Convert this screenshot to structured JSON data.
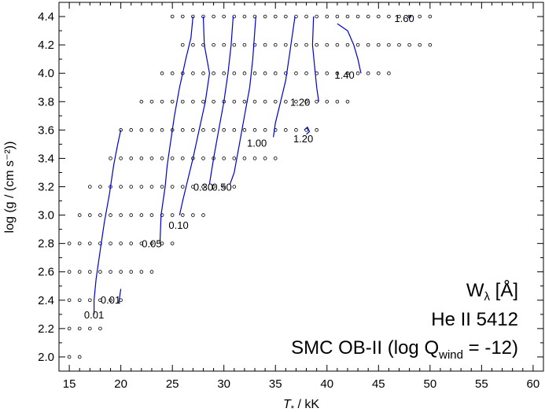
{
  "chart_data": {
    "type": "contour",
    "xlabel_main": "T",
    "xlabel_sub": "*",
    "xlabel_unit": " / kK",
    "ylabel": "log (g / (cm s⁻²))",
    "xlim": [
      14,
      61
    ],
    "ylim": [
      1.9,
      4.5
    ],
    "x_ticks": [
      15,
      20,
      25,
      30,
      35,
      40,
      45,
      50,
      55,
      60
    ],
    "y_ticks": [
      2.0,
      2.2,
      2.4,
      2.6,
      2.8,
      3.0,
      3.2,
      3.4,
      3.6,
      3.8,
      4.0,
      4.2,
      4.4
    ],
    "x_tick_labels": [
      "15",
      "20",
      "25",
      "30",
      "35",
      "40",
      "45",
      "50",
      "55",
      "60"
    ],
    "y_tick_labels": [
      "2.0",
      "2.2",
      "2.4",
      "2.6",
      "2.8",
      "3.0",
      "3.2",
      "3.4",
      "3.6",
      "3.8",
      "4.0",
      "4.2",
      "4.4"
    ],
    "legend_lines": {
      "quantity": "W",
      "quantity_sub": "λ",
      "quantity_unit": " [Å]",
      "line_name": "He II 5412",
      "model_prefix": "SMC OB-II (log Q",
      "model_sub": "wind",
      "model_suffix": " = -12)"
    },
    "grid_color": "#000000",
    "contour_color": "#0000cc",
    "grid_rows": [
      {
        "logg": 2.0,
        "x": [
          15,
          16
        ]
      },
      {
        "logg": 2.2,
        "x": [
          15,
          16,
          17,
          18
        ]
      },
      {
        "logg": 2.4,
        "x": [
          15,
          16,
          17,
          18,
          19,
          20
        ]
      },
      {
        "logg": 2.6,
        "x": [
          15,
          16,
          17,
          18,
          19,
          20,
          21,
          22,
          23
        ]
      },
      {
        "logg": 2.8,
        "x": [
          15,
          16,
          17,
          18,
          19,
          20,
          21,
          22,
          23,
          24,
          25
        ]
      },
      {
        "logg": 3.0,
        "x": [
          16,
          17,
          18,
          19,
          20,
          21,
          22,
          23,
          24,
          25,
          26,
          27,
          28
        ]
      },
      {
        "logg": 3.2,
        "x": [
          17,
          18,
          19,
          20,
          21,
          22,
          23,
          24,
          25,
          26,
          27,
          28,
          29,
          30,
          31
        ]
      },
      {
        "logg": 3.4,
        "x": [
          19,
          20,
          21,
          22,
          23,
          24,
          25,
          26,
          27,
          28,
          29,
          30,
          31,
          32,
          33,
          34,
          35
        ]
      },
      {
        "logg": 3.6,
        "x": [
          20,
          21,
          22,
          23,
          24,
          25,
          26,
          27,
          28,
          29,
          30,
          31,
          32,
          33,
          34,
          35,
          36,
          37,
          38,
          39
        ]
      },
      {
        "logg": 3.8,
        "x": [
          22,
          23,
          24,
          25,
          26,
          27,
          28,
          29,
          30,
          31,
          32,
          33,
          34,
          35,
          36,
          37,
          38,
          39,
          40,
          41,
          42
        ]
      },
      {
        "logg": 4.0,
        "x": [
          24,
          25,
          26,
          27,
          28,
          29,
          30,
          31,
          32,
          33,
          34,
          35,
          36,
          37,
          38,
          39,
          40,
          41,
          42,
          43,
          44,
          45,
          46
        ]
      },
      {
        "logg": 4.2,
        "x": [
          26,
          27,
          28,
          29,
          30,
          31,
          32,
          33,
          34,
          35,
          36,
          37,
          38,
          39,
          40,
          41,
          42,
          43,
          44,
          45,
          46,
          47,
          48,
          49,
          50
        ]
      },
      {
        "logg": 4.4,
        "x": [
          25,
          26,
          27,
          28,
          29,
          30,
          31,
          32,
          33,
          34,
          35,
          36,
          37,
          38,
          39,
          40,
          41,
          42,
          43,
          44,
          45,
          46,
          47,
          48,
          49,
          50
        ]
      }
    ],
    "contours": [
      {
        "level": "0.01",
        "points": [
          [
            17.4,
            2.3
          ],
          [
            17.4,
            2.4
          ],
          [
            17.6,
            2.55
          ],
          [
            18.0,
            2.75
          ],
          [
            18.4,
            2.95
          ],
          [
            18.9,
            3.15
          ],
          [
            19.3,
            3.35
          ],
          [
            19.7,
            3.5
          ],
          [
            20.0,
            3.6
          ]
        ]
      },
      {
        "level": "0.01",
        "points": [
          [
            19.8,
            2.38
          ],
          [
            19.9,
            2.43
          ],
          [
            20.0,
            2.48
          ]
        ]
      },
      {
        "level": "0.05",
        "points": [
          [
            23.8,
            2.8
          ],
          [
            23.9,
            3.0
          ],
          [
            24.3,
            3.2
          ],
          [
            24.5,
            3.35
          ],
          [
            24.8,
            3.5
          ],
          [
            25.2,
            3.7
          ],
          [
            25.7,
            3.9
          ],
          [
            26.3,
            4.1
          ],
          [
            26.8,
            4.25
          ],
          [
            27.0,
            4.4
          ]
        ]
      },
      {
        "level": "0.10",
        "points": [
          [
            25.7,
            3.0
          ],
          [
            26.0,
            3.1
          ],
          [
            26.5,
            3.25
          ],
          [
            27.0,
            3.4
          ],
          [
            27.6,
            3.6
          ],
          [
            28.2,
            3.8
          ],
          [
            28.6,
            4.0
          ],
          [
            28.1,
            4.2
          ],
          [
            28.0,
            4.4
          ]
        ]
      },
      {
        "level": "0.30",
        "points": [
          [
            28.6,
            3.22
          ],
          [
            29.0,
            3.4
          ],
          [
            29.5,
            3.6
          ],
          [
            30.0,
            3.8
          ],
          [
            30.4,
            4.0
          ],
          [
            30.7,
            4.2
          ],
          [
            30.9,
            4.4
          ]
        ]
      },
      {
        "level": "0.50",
        "points": [
          [
            30.6,
            3.22
          ],
          [
            31.0,
            3.3
          ],
          [
            31.5,
            3.5
          ],
          [
            32.0,
            3.7
          ],
          [
            32.5,
            3.9
          ],
          [
            32.8,
            4.1
          ],
          [
            33.0,
            4.3
          ],
          [
            33.1,
            4.4
          ]
        ]
      },
      {
        "level": "1.00",
        "points": [
          [
            34.8,
            3.55
          ],
          [
            35.0,
            3.65
          ],
          [
            35.5,
            3.8
          ],
          [
            36.0,
            3.95
          ],
          [
            36.3,
            4.1
          ],
          [
            36.6,
            4.25
          ],
          [
            36.9,
            4.4
          ]
        ]
      },
      {
        "level": "1.20",
        "points": [
          [
            38.0,
            3.57
          ],
          [
            38.3,
            3.59
          ],
          [
            38.1,
            3.62
          ],
          [
            37.8,
            3.6
          ]
        ]
      },
      {
        "level": "1.20",
        "points": [
          [
            39.2,
            3.8
          ],
          [
            39.0,
            3.9
          ],
          [
            38.8,
            4.05
          ],
          [
            38.6,
            4.2
          ],
          [
            38.7,
            4.4
          ]
        ]
      },
      {
        "level": "1.40",
        "points": [
          [
            43.3,
            4.0
          ],
          [
            43.0,
            4.1
          ],
          [
            42.6,
            4.2
          ],
          [
            42.0,
            4.3
          ],
          [
            41.0,
            4.35
          ]
        ]
      },
      {
        "level": "1.60",
        "points": [
          [
            47.9,
            4.4
          ],
          [
            48.2,
            4.4
          ]
        ]
      }
    ],
    "contour_labels": [
      {
        "text": "0.01",
        "x": 17.4,
        "y": 2.3
      },
      {
        "text": "0.01",
        "x": 19.0,
        "y": 2.405
      },
      {
        "text": "0.05",
        "x": 23.0,
        "y": 2.8
      },
      {
        "text": "0.10",
        "x": 25.6,
        "y": 2.93
      },
      {
        "text": "0.30",
        "x": 28.0,
        "y": 3.2
      },
      {
        "text": "0.50",
        "x": 29.8,
        "y": 3.2
      },
      {
        "text": "1.00",
        "x": 33.2,
        "y": 3.51
      },
      {
        "text": "1.20",
        "x": 37.7,
        "y": 3.54
      },
      {
        "text": "1.20",
        "x": 37.4,
        "y": 3.8
      },
      {
        "text": "1.40",
        "x": 41.7,
        "y": 3.99
      },
      {
        "text": "1.60",
        "x": 47.5,
        "y": 4.39
      }
    ]
  }
}
